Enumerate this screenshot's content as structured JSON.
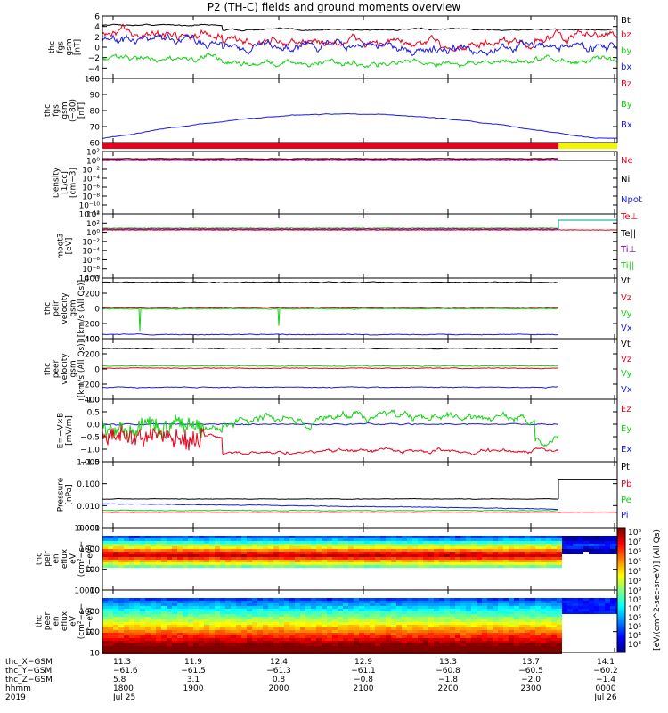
{
  "title": "P2 (TH-C) fields and ground moments overview",
  "colors": {
    "black": "#000000",
    "red": "#e8001c",
    "green": "#12d312",
    "blue": "#1a1ae6",
    "purple": "#7a00b5",
    "yellow": "#f5f500",
    "teal": "#00a08c"
  },
  "chart_data": [
    {
      "id": "p1",
      "type": "line",
      "ylabel": [
        "thc",
        "fgs",
        "gsm",
        "[nT]"
      ],
      "yticks": [
        "6",
        "4",
        "2",
        "0",
        "−2",
        "−4",
        "−6"
      ],
      "ylim": [
        -6,
        6
      ],
      "series": [
        {
          "name": "Bt",
          "color": "#000000"
        },
        {
          "name": "bz",
          "color": "#e8001c"
        },
        {
          "name": "by",
          "color": "#12d312"
        },
        {
          "name": "bx",
          "color": "#1a1ae6"
        }
      ]
    },
    {
      "id": "p2",
      "type": "line",
      "ylabel": [
        "thc",
        "fgs",
        "gsm",
        "(−80)",
        "[nT]"
      ],
      "yticks": [
        "100",
        "90",
        "80",
        "70",
        "60"
      ],
      "ylim": [
        55,
        100
      ],
      "series": [
        {
          "name": "Bz",
          "color": "#e8001c"
        },
        {
          "name": "By",
          "color": "#12d312"
        },
        {
          "name": "Bx",
          "color": "#1a1ae6"
        }
      ]
    },
    {
      "id": "p3",
      "type": "line",
      "ylabel": [
        "Density",
        "[1/cc]",
        "[cm−3]"
      ],
      "yticks": [
        "10²",
        "10⁰",
        "10⁻²",
        "10⁻⁴",
        "10⁻⁶",
        "10⁻⁸",
        "10⁻¹⁰",
        "10⁻¹²"
      ],
      "series": [
        {
          "name": "Ne",
          "color": "#e8001c"
        },
        {
          "name": "Ni",
          "color": "#000000"
        },
        {
          "name": "Npot",
          "color": "#1a1ae6"
        }
      ]
    },
    {
      "id": "p4",
      "type": "line",
      "ylabel": [
        "moqt3",
        "[eV]"
      ],
      "yticks": [
        "10⁴",
        "10²",
        "10⁰",
        "10⁻²",
        "10⁻⁴",
        "10⁻⁶",
        "10⁻⁸",
        "10⁻¹⁰"
      ],
      "series": [
        {
          "name": "Te⊥",
          "color": "#e8001c"
        },
        {
          "name": "Te||",
          "color": "#000000"
        },
        {
          "name": "Ti⊥",
          "color": "#7a00b5"
        },
        {
          "name": "Ti||",
          "color": "#12d312"
        }
      ]
    },
    {
      "id": "p5",
      "type": "line",
      "ylabel": [
        "thc",
        "peir",
        "velocity",
        "gsm",
        "[km/s (All Qs)]"
      ],
      "yticks": [
        "400",
        "200",
        "0",
        "−200",
        "−400"
      ],
      "ylim": [
        -400,
        400
      ],
      "series": [
        {
          "name": "Vt",
          "color": "#000000"
        },
        {
          "name": "Vz",
          "color": "#e8001c"
        },
        {
          "name": "Vy",
          "color": "#12d312"
        },
        {
          "name": "Vx",
          "color": "#1a1ae6"
        }
      ]
    },
    {
      "id": "p6",
      "type": "line",
      "ylabel": [
        "thc",
        "peer",
        "velocity",
        "gsm",
        "[km/s (All Qs)]"
      ],
      "yticks": [
        "400",
        "200",
        "0",
        "−200",
        "−400"
      ],
      "ylim": [
        -400,
        400
      ],
      "series": [
        {
          "name": "Vt",
          "color": "#000000"
        },
        {
          "name": "Vz",
          "color": "#e8001c"
        },
        {
          "name": "Vy",
          "color": "#12d312"
        },
        {
          "name": "Vx",
          "color": "#1a1ae6"
        }
      ]
    },
    {
      "id": "p7",
      "type": "line",
      "ylabel": [
        "E=−V×B",
        "[mV/m]"
      ],
      "yticks": [
        "1.0",
        "0.5",
        "0.0",
        "−0.5",
        "−1.0",
        "−1.5"
      ],
      "ylim": [
        -1.5,
        1.0
      ],
      "series": [
        {
          "name": "Ez",
          "color": "#e8001c"
        },
        {
          "name": "Ey",
          "color": "#12d312"
        },
        {
          "name": "Ex",
          "color": "#1a1ae6"
        }
      ]
    },
    {
      "id": "p8",
      "type": "line",
      "ylabel": [
        "Pressure",
        "[nPa]"
      ],
      "yticks": [
        "1.000",
        "0.100",
        "0.010",
        "0.001"
      ],
      "series": [
        {
          "name": "Pt",
          "color": "#000000"
        },
        {
          "name": "Pb",
          "color": "#e8001c"
        },
        {
          "name": "Pe",
          "color": "#12d312"
        },
        {
          "name": "Pi",
          "color": "#1a1ae6"
        }
      ]
    },
    {
      "id": "p9",
      "type": "heatmap",
      "ylabel": [
        "thc",
        "peir",
        "en",
        "eflux",
        "eV",
        "(cm²−s−",
        "sr−eV)"
      ],
      "yticks": [
        "10000",
        "1000",
        "100",
        "10"
      ],
      "colorbar": {
        "label": "[eV/(cm^2-sec-sr-eV)] (All Qs)",
        "ticks": [
          "10⁸",
          "10⁷",
          "10⁶",
          "10⁵",
          "10⁴",
          "10³"
        ]
      }
    },
    {
      "id": "p10",
      "type": "heatmap",
      "ylabel": [
        "thc",
        "peer",
        "en",
        "eflux",
        "eV",
        "(cm²−s−",
        "sr−eV)"
      ],
      "yticks": [
        "10000",
        "1000",
        "100",
        "10"
      ],
      "colorbar": {
        "label": "[eV/(cm^2-sec-sr-eV)] (All Qs)",
        "ticks": [
          "10⁹",
          "10⁸",
          "10⁷",
          "10⁶",
          "10⁵",
          "10⁴",
          "10³"
        ]
      }
    }
  ],
  "xaxis": {
    "row_labels": [
      "thc_X−GSM",
      "thc_Y−GSM",
      "thc_Z−GSM",
      "hhmm",
      "2019"
    ],
    "columns": [
      [
        "11.3",
        "−61.6",
        "5.8",
        "1800",
        "Jul 25"
      ],
      [
        "11.9",
        "−61.5",
        "3.1",
        "1900",
        ""
      ],
      [
        "12.4",
        "−61.3",
        "0.8",
        "2000",
        ""
      ],
      [
        "12.9",
        "−61.1",
        "−0.8",
        "2100",
        ""
      ],
      [
        "13.3",
        "−60.8",
        "−1.8",
        "2200",
        ""
      ],
      [
        "13.7",
        "−60.5",
        "−2.0",
        "2300",
        ""
      ],
      [
        "14.1",
        "−60.2",
        "−1.4",
        "0000",
        "Jul 26"
      ]
    ]
  }
}
